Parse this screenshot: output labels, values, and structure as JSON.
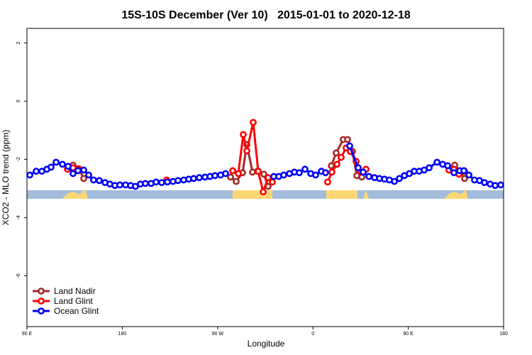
{
  "chart_data": {
    "type": "line",
    "title": "15S-10S December (Ver 10)   2015-01-01 to 2020-12-18",
    "x_label": "Longitude",
    "y_label": "XCO2 - MLO trend (ppm)",
    "xlim": [
      90,
      540
    ],
    "xticks": [
      {
        "value": 90,
        "label": "90 E"
      },
      180,
      {
        "value": 270,
        "label": "90 W"
      },
      {
        "value": 360,
        "label": "0"
      },
      {
        "value": 450,
        "label": "90 E"
      },
      {
        "value": 540,
        "label": "180"
      }
    ],
    "ylim": [
      -7.75,
      2.5
    ],
    "yticks": [
      2,
      0,
      -2,
      -4,
      -6
    ],
    "legend": "bottom-left",
    "series": [
      {
        "name": "Land Nadir",
        "color": "#a52a2a",
        "x": [
          133.5,
          138.9,
          143.6,
          282.2,
          287.5,
          293.6,
          297.6,
          302.9,
          307.6,
          313.6,
          317.7,
          377.3,
          381.9,
          388.6,
          392.7,
          397.3,
          401.4,
          406.1,
          489.1,
          493.8,
          498.5,
          503.1
        ],
        "values": [
          -2.2,
          -2.32,
          -2.66,
          -2.61,
          -2.76,
          -2.46,
          -1.49,
          -2.44,
          -2.41,
          -2.51,
          -2.93,
          -2.22,
          -1.78,
          -1.32,
          -1.32,
          -1.73,
          -2.56,
          -2.61,
          -2.32,
          -2.2,
          -2.39,
          -2.66
        ]
      },
      {
        "name": "Land Glint",
        "color": "#ff0000",
        "x": [
          128.2,
          133.5,
          138.2,
          221.9,
          284.2,
          289.5,
          294.2,
          297.6,
          303.6,
          308.3,
          313.0,
          317.7,
          321.7,
          373.9,
          377.9,
          382.6,
          386.6,
          391.3,
          395.3,
          400.7,
          405.4,
          410.1,
          488.4,
          493.1,
          497.8,
          503.1
        ],
        "values": [
          -2.34,
          -2.29,
          -2.34,
          -2.71,
          -2.39,
          -2.49,
          -1.15,
          -1.71,
          -0.73,
          -2.41,
          -3.12,
          -2.63,
          -2.78,
          -2.78,
          -2.44,
          -2.17,
          -1.93,
          -1.61,
          -1.73,
          -2.07,
          -2.44,
          -2.34,
          -2.37,
          -2.34,
          -2.51,
          -2.41
        ]
      },
      {
        "name": "Ocean Glint",
        "color": "#0000ff",
        "x": [
          92.7,
          98.7,
          104.1,
          108.8,
          112.8,
          117.5,
          123.5,
          128.8,
          133.5,
          138.2,
          143.6,
          148.3,
          152.9,
          158.3,
          163.7,
          168.3,
          173.0,
          177.7,
          183.1,
          187.8,
          192.4,
          197.1,
          201.8,
          207.2,
          211.9,
          217.2,
          222.6,
          227.9,
          232.6,
          238.0,
          242.7,
          247.4,
          252.7,
          258.1,
          262.8,
          267.5,
          272.8,
          277.5,
          323.0,
          327.7,
          332.4,
          337.8,
          342.5,
          347.1,
          352.5,
          357.9,
          362.5,
          367.9,
          371.9,
          394.7,
          402.7,
          407.4,
          412.8,
          418.1,
          422.8,
          427.5,
          432.2,
          436.9,
          441.6,
          446.3,
          451.0,
          455.6,
          460.3,
          465.0,
          469.7,
          477.1,
          482.4,
          487.1,
          493.1,
          498.5,
          502.5,
          507.2,
          512.5,
          517.2,
          521.9,
          527.3,
          532.0,
          537.3
        ],
        "values": [
          -2.54,
          -2.41,
          -2.41,
          -2.34,
          -2.27,
          -2.1,
          -2.17,
          -2.24,
          -2.49,
          -2.39,
          -2.37,
          -2.54,
          -2.71,
          -2.73,
          -2.8,
          -2.85,
          -2.9,
          -2.88,
          -2.88,
          -2.9,
          -2.93,
          -2.85,
          -2.83,
          -2.83,
          -2.78,
          -2.8,
          -2.78,
          -2.76,
          -2.73,
          -2.71,
          -2.68,
          -2.66,
          -2.63,
          -2.61,
          -2.59,
          -2.56,
          -2.54,
          -2.49,
          -2.59,
          -2.59,
          -2.54,
          -2.49,
          -2.44,
          -2.46,
          -2.34,
          -2.49,
          -2.54,
          -2.41,
          -2.46,
          -1.54,
          -2.29,
          -2.44,
          -2.59,
          -2.63,
          -2.66,
          -2.68,
          -2.71,
          -2.76,
          -2.66,
          -2.56,
          -2.49,
          -2.41,
          -2.41,
          -2.37,
          -2.29,
          -2.1,
          -2.17,
          -2.22,
          -2.46,
          -2.39,
          -2.39,
          -2.54,
          -2.71,
          -2.73,
          -2.8,
          -2.85,
          -2.9,
          -2.88
        ]
      }
    ]
  }
}
